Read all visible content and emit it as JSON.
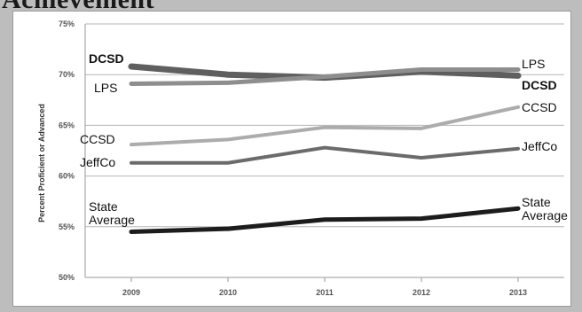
{
  "heading": "Achievement",
  "chart_data": {
    "type": "line",
    "title": "",
    "xlabel": "",
    "ylabel": "Percent Proficient or Advanced",
    "categories": [
      "2009",
      "2010",
      "2011",
      "2012",
      "2013"
    ],
    "ylim": [
      50,
      75
    ],
    "yticks": [
      "50%",
      "55%",
      "60%",
      "65%",
      "70%",
      "75%"
    ],
    "grid": true,
    "series": [
      {
        "name": "DCSD",
        "values": [
          70.8,
          70.0,
          69.7,
          70.3,
          69.9
        ],
        "color": "#5f5f5f",
        "bold": true
      },
      {
        "name": "LPS",
        "values": [
          69.1,
          69.2,
          69.8,
          70.5,
          70.5
        ],
        "color": "#8e8e8e",
        "bold": false
      },
      {
        "name": "CCSD",
        "values": [
          63.1,
          63.6,
          64.8,
          64.7,
          66.8
        ],
        "color": "#acacac",
        "bold": false
      },
      {
        "name": "JeffCo",
        "values": [
          61.3,
          61.3,
          62.8,
          61.8,
          62.7
        ],
        "color": "#6b6b6b",
        "bold": false
      },
      {
        "name": "State Average",
        "values": [
          54.5,
          54.8,
          55.7,
          55.8,
          56.8
        ],
        "color": "#1c1c1c",
        "bold": false
      }
    ]
  }
}
